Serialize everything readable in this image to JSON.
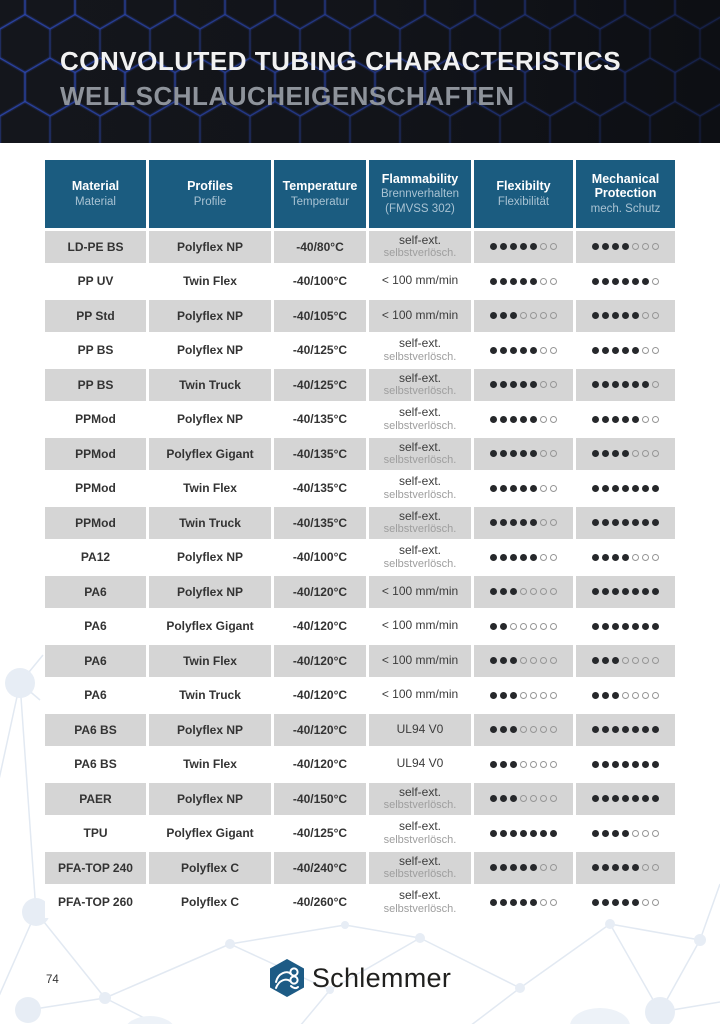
{
  "header": {
    "title_en": "CONVOLUTED TUBING CHARACTERISTICS",
    "title_de": "WELLSCHLAUCHEIGENSCHAFTEN"
  },
  "page": {
    "number": "74"
  },
  "footer": {
    "brand": "Schlemmer"
  },
  "colors": {
    "banner_bg": "#14161c",
    "hexagon_line": "#2e4bbd",
    "header_cell_blue": "#1b5c80",
    "header_subtext": "#a9c3d3",
    "row_shade_gray": "#d5d5d5",
    "dot_filled": "#26282b",
    "logo_blue": "#1d5b85",
    "network_line": "#e2e9f2"
  },
  "table": {
    "rating_max": 7,
    "columns": [
      {
        "en": "Material",
        "de": "Material"
      },
      {
        "en": "Profiles",
        "de": "Profile"
      },
      {
        "en": "Temperature",
        "de": "Temperatur"
      },
      {
        "en": "Flammability",
        "de": "Brennverhalten",
        "de2": "(FMVSS 302)"
      },
      {
        "en": "Flexibilty",
        "de": "Flexibilität"
      },
      {
        "en": "Mechanical Protection",
        "de": "mech. Schutz"
      }
    ],
    "rows": [
      {
        "material": "LD-PE BS",
        "profile": "Polyflex NP",
        "temperature": "-40/80°C",
        "flammability_en": "self-ext.",
        "flammability_de": "selbstverlösch.",
        "flexibility": 5,
        "mechanical": 4
      },
      {
        "material": "PP UV",
        "profile": "Twin Flex",
        "temperature": "-40/100°C",
        "flammability_en": "< 100 mm/min",
        "flammability_de": "",
        "flexibility": 5,
        "mechanical": 6
      },
      {
        "material": "PP Std",
        "profile": "Polyflex NP",
        "temperature": "-40/105°C",
        "flammability_en": "< 100 mm/min",
        "flammability_de": "",
        "flexibility": 3,
        "mechanical": 5
      },
      {
        "material": "PP BS",
        "profile": "Polyflex NP",
        "temperature": "-40/125°C",
        "flammability_en": "self-ext.",
        "flammability_de": "selbstverlösch.",
        "flexibility": 5,
        "mechanical": 5
      },
      {
        "material": "PP BS",
        "profile": "Twin Truck",
        "temperature": "-40/125°C",
        "flammability_en": "self-ext.",
        "flammability_de": "selbstverlösch.",
        "flexibility": 5,
        "mechanical": 6
      },
      {
        "material": "PPMod",
        "profile": "Polyflex NP",
        "temperature": "-40/135°C",
        "flammability_en": "self-ext.",
        "flammability_de": "selbstverlösch.",
        "flexibility": 5,
        "mechanical": 5
      },
      {
        "material": "PPMod",
        "profile": "Polyflex Gigant",
        "temperature": "-40/135°C",
        "flammability_en": "self-ext.",
        "flammability_de": "selbstverlösch.",
        "flexibility": 5,
        "mechanical": 4
      },
      {
        "material": "PPMod",
        "profile": "Twin Flex",
        "temperature": "-40/135°C",
        "flammability_en": "self-ext.",
        "flammability_de": "selbstverlösch.",
        "flexibility": 5,
        "mechanical": 7
      },
      {
        "material": "PPMod",
        "profile": "Twin Truck",
        "temperature": "-40/135°C",
        "flammability_en": "self-ext.",
        "flammability_de": "selbstverlösch.",
        "flexibility": 5,
        "mechanical": 7
      },
      {
        "material": "PA12",
        "profile": "Polyflex NP",
        "temperature": "-40/100°C",
        "flammability_en": "self-ext.",
        "flammability_de": "selbstverlösch.",
        "flexibility": 5,
        "mechanical": 4
      },
      {
        "material": "PA6",
        "profile": "Polyflex NP",
        "temperature": "-40/120°C",
        "flammability_en": "< 100 mm/min",
        "flammability_de": "",
        "flexibility": 3,
        "mechanical": 7
      },
      {
        "material": "PA6",
        "profile": "Polyflex Gigant",
        "temperature": "-40/120°C",
        "flammability_en": "< 100 mm/min",
        "flammability_de": "",
        "flexibility": 2,
        "mechanical": 7
      },
      {
        "material": "PA6",
        "profile": "Twin Flex",
        "temperature": "-40/120°C",
        "flammability_en": "< 100 mm/min",
        "flammability_de": "",
        "flexibility": 3,
        "mechanical": 3
      },
      {
        "material": "PA6",
        "profile": "Twin Truck",
        "temperature": "-40/120°C",
        "flammability_en": "< 100 mm/min",
        "flammability_de": "",
        "flexibility": 3,
        "mechanical": 3
      },
      {
        "material": "PA6 BS",
        "profile": "Polyflex NP",
        "temperature": "-40/120°C",
        "flammability_en": "UL94 V0",
        "flammability_de": "",
        "flexibility": 3,
        "mechanical": 7
      },
      {
        "material": "PA6 BS",
        "profile": "Twin Flex",
        "temperature": "-40/120°C",
        "flammability_en": "UL94 V0",
        "flammability_de": "",
        "flexibility": 3,
        "mechanical": 7
      },
      {
        "material": "PAER",
        "profile": "Polyflex NP",
        "temperature": "-40/150°C",
        "flammability_en": "self-ext.",
        "flammability_de": "selbstverlösch.",
        "flexibility": 3,
        "mechanical": 7
      },
      {
        "material": "TPU",
        "profile": "Polyflex Gigant",
        "temperature": "-40/125°C",
        "flammability_en": "self-ext.",
        "flammability_de": "selbstverlösch.",
        "flexibility": 7,
        "mechanical": 4
      },
      {
        "material": "PFA-TOP 240",
        "profile": "Polyflex C",
        "temperature": "-40/240°C",
        "flammability_en": "self-ext.",
        "flammability_de": "selbstverlösch.",
        "flexibility": 5,
        "mechanical": 5
      },
      {
        "material": "PFA-TOP 260",
        "profile": "Polyflex C",
        "temperature": "-40/260°C",
        "flammability_en": "self-ext.",
        "flammability_de": "selbstverlösch.",
        "flexibility": 5,
        "mechanical": 5
      }
    ]
  }
}
